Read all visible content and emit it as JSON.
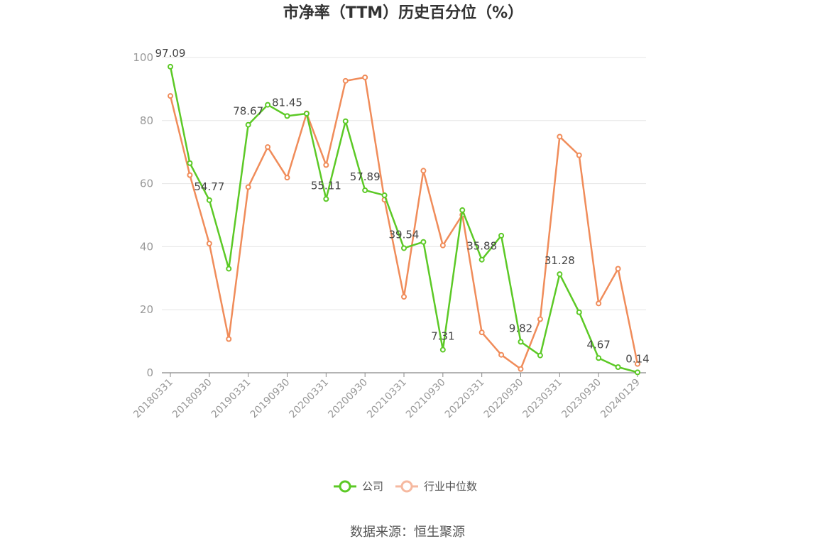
{
  "chart_data": {
    "type": "line",
    "title": "市净率（TTM）历史百分位（%）",
    "source": "数据来源：恒生聚源",
    "ylim": [
      0,
      100
    ],
    "yticks": [
      0,
      20,
      40,
      60,
      80,
      100
    ],
    "grid": true,
    "legend_position": "bottom",
    "x_tick_labels": [
      "20180331",
      "20180930",
      "20190331",
      "20190930",
      "20200331",
      "20200930",
      "20210331",
      "20210930",
      "20220331",
      "20220930",
      "20230331",
      "20230930",
      "20240129"
    ],
    "x": [
      "20180331",
      "20180630",
      "20180930",
      "20181231",
      "20190331",
      "20190630",
      "20190930",
      "20191231",
      "20200331",
      "20200630",
      "20200930",
      "20201231",
      "20210331",
      "20210630",
      "20210930",
      "20211231",
      "20220331",
      "20220630",
      "20220930",
      "20221231",
      "20230331",
      "20230630",
      "20230930",
      "20231231",
      "20240129"
    ],
    "series": [
      {
        "name": "公司",
        "color": "#5cc926",
        "values": [
          97.09,
          66.5,
          54.77,
          33.0,
          78.67,
          85.0,
          81.45,
          82.2,
          55.11,
          79.8,
          57.89,
          56.3,
          39.54,
          41.5,
          7.31,
          51.6,
          35.88,
          43.5,
          9.82,
          5.5,
          31.28,
          19.2,
          4.67,
          1.8,
          0.14
        ],
        "labels": {
          "0": "97.09",
          "2": "54.77",
          "4": "78.67",
          "6": "81.45",
          "8": "55.11",
          "10": "57.89",
          "12": "39.54",
          "14": "7.31",
          "16": "35.88",
          "18": "9.82",
          "20": "31.28",
          "22": "4.67",
          "24": "0.14"
        }
      },
      {
        "name": "行业中位数",
        "color": "#f08c5a",
        "values": [
          87.8,
          62.7,
          41.0,
          10.7,
          58.9,
          71.6,
          61.9,
          82.3,
          65.9,
          92.6,
          93.7,
          54.9,
          24.1,
          64.1,
          40.4,
          50.1,
          12.8,
          5.7,
          1.2,
          17.0,
          74.9,
          69.0,
          22.0,
          33.0,
          2.8
        ]
      }
    ]
  }
}
